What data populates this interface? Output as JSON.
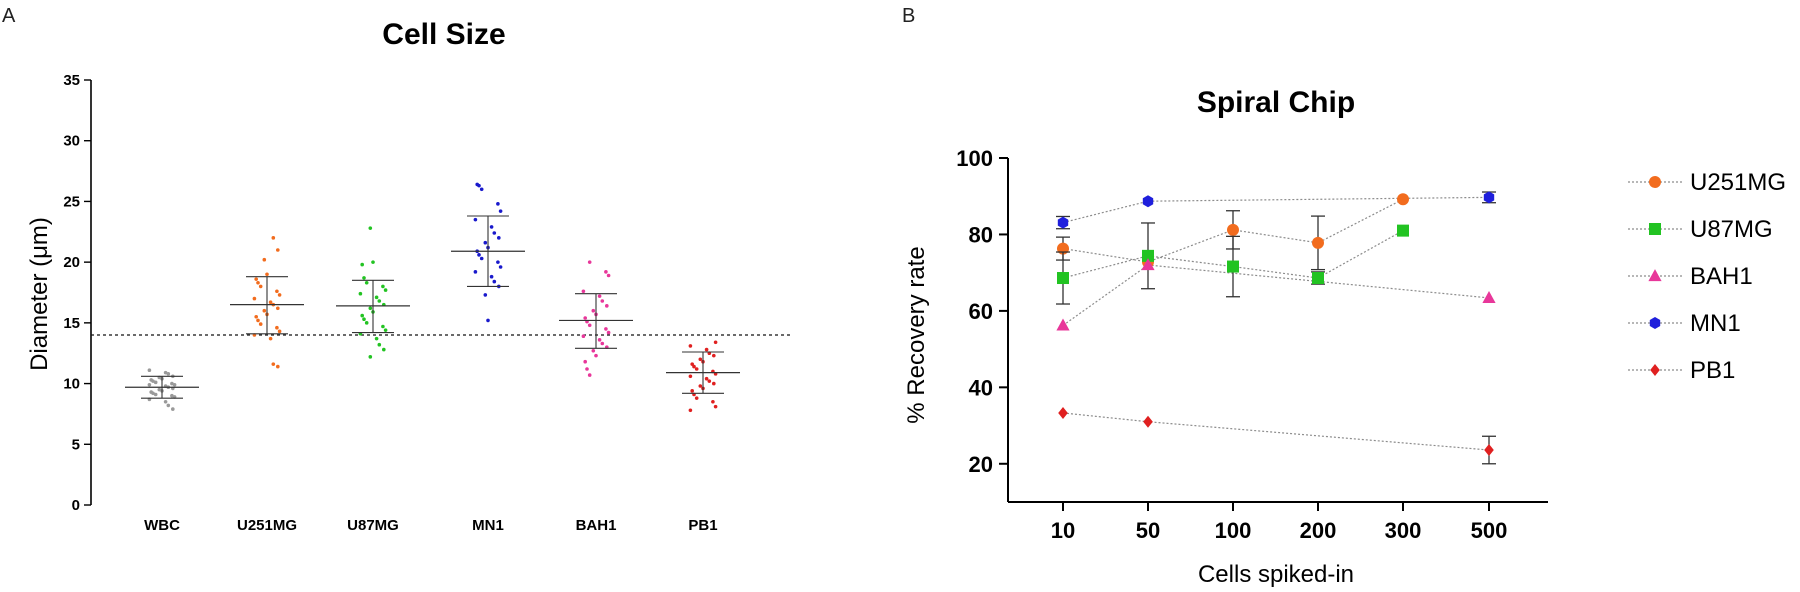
{
  "panels": [
    {
      "letter": "A"
    },
    {
      "letter": "B"
    }
  ],
  "chart_data": [
    {
      "type": "scatter",
      "title": "Cell Size",
      "xlabel": "",
      "ylabel": "Diameter (μm)",
      "ylim": [
        0,
        35
      ],
      "yticks": [
        0,
        5,
        10,
        15,
        20,
        25,
        30,
        35
      ],
      "threshold": 14,
      "categories": [
        "WBC",
        "U251MG",
        "U87MG",
        "MN1",
        "BAH1",
        "PB1"
      ],
      "series": [
        {
          "name": "WBC",
          "color": "#9a9a9a",
          "mean": 9.7,
          "sd_low": 8.8,
          "sd_high": 10.6,
          "points": [
            11.1,
            10.9,
            10.8,
            10.6,
            10.5,
            10.4,
            10.3,
            10.2,
            10.1,
            10.0,
            9.9,
            9.9,
            9.8,
            9.7,
            9.6,
            9.5,
            9.4,
            9.3,
            9.2,
            9.1,
            9.0,
            8.9,
            8.7,
            8.5,
            8.2,
            7.9
          ]
        },
        {
          "name": "U251MG",
          "color": "#f26c1e",
          "mean": 16.5,
          "sd_low": 14.1,
          "sd_high": 18.8,
          "points": [
            22.0,
            21.0,
            20.2,
            19.0,
            18.6,
            18.3,
            18.0,
            17.6,
            17.3,
            17.0,
            16.7,
            16.5,
            16.2,
            16.0,
            15.7,
            15.5,
            15.2,
            14.9,
            14.6,
            14.3,
            14.0,
            13.7,
            11.6,
            11.4
          ]
        },
        {
          "name": "U87MG",
          "color": "#22c322",
          "mean": 16.4,
          "sd_low": 14.2,
          "sd_high": 18.5,
          "points": [
            22.8,
            20.0,
            19.8,
            18.7,
            18.3,
            18.0,
            17.7,
            17.4,
            17.1,
            16.8,
            16.5,
            16.2,
            15.9,
            15.6,
            15.3,
            15.0,
            14.7,
            14.4,
            14.1,
            13.7,
            13.2,
            12.8,
            12.2
          ]
        },
        {
          "name": "MN1",
          "color": "#1919cc",
          "mean": 20.9,
          "sd_low": 18.0,
          "sd_high": 23.8,
          "points": [
            26.4,
            26.3,
            26.0,
            24.8,
            24.2,
            23.5,
            22.9,
            22.4,
            22.0,
            21.6,
            21.2,
            20.9,
            20.6,
            20.3,
            20.0,
            19.6,
            19.2,
            18.8,
            18.4,
            18.0,
            17.3,
            15.2
          ]
        },
        {
          "name": "BAH1",
          "color": "#e8379a",
          "mean": 15.2,
          "sd_low": 12.9,
          "sd_high": 17.4,
          "points": [
            20.0,
            19.2,
            18.9,
            17.6,
            17.2,
            16.8,
            16.4,
            16.0,
            15.7,
            15.4,
            15.1,
            14.8,
            14.5,
            14.2,
            13.9,
            13.6,
            13.3,
            13.0,
            12.7,
            12.3,
            11.8,
            11.2,
            10.7
          ]
        },
        {
          "name": "PB1",
          "color": "#e02020",
          "mean": 10.9,
          "sd_low": 9.2,
          "sd_high": 12.6,
          "points": [
            13.4,
            13.1,
            12.8,
            12.5,
            12.3,
            12.0,
            11.8,
            11.6,
            11.4,
            11.2,
            11.0,
            10.8,
            10.6,
            10.4,
            10.2,
            10.0,
            9.8,
            9.6,
            9.4,
            9.1,
            8.8,
            8.5,
            8.1,
            7.8
          ]
        }
      ]
    },
    {
      "type": "line",
      "title": "Spiral Chip",
      "xlabel": "Cells spiked-in",
      "ylabel": "% Recovery rate",
      "categories": [
        "10",
        "50",
        "100",
        "200",
        "300",
        "500"
      ],
      "ylim": [
        10,
        100
      ],
      "yticks": [
        20,
        40,
        60,
        80,
        100
      ],
      "legend_position": "right",
      "series": [
        {
          "name": "U251MG",
          "color": "#f26c1e",
          "marker": "circle",
          "x": [
            "10",
            "50",
            "100",
            "200",
            "300"
          ],
          "values": [
            76.3,
            72.8,
            81.2,
            77.8,
            89.2
          ],
          "err": [
            3.0,
            0,
            5.0,
            7.0,
            0
          ]
        },
        {
          "name": "U87MG",
          "color": "#22c322",
          "marker": "square",
          "x": [
            "10",
            "50",
            "100",
            "200",
            "300"
          ],
          "values": [
            68.6,
            74.4,
            71.6,
            68.6,
            81.0
          ],
          "err": [
            6.8,
            8.6,
            7.9,
            1.6,
            0
          ]
        },
        {
          "name": "BAH1",
          "color": "#e8379a",
          "marker": "triangle",
          "x": [
            "10",
            "50",
            "500"
          ],
          "values": [
            56.2,
            72.0,
            63.4
          ],
          "err": [
            0,
            0,
            0
          ]
        },
        {
          "name": "MN1",
          "color": "#1f1fdc",
          "marker": "hexagon",
          "x": [
            "10",
            "50",
            "500"
          ],
          "values": [
            83.1,
            88.7,
            89.7
          ],
          "err": [
            1.6,
            0,
            1.4
          ]
        },
        {
          "name": "PB1",
          "color": "#e02020",
          "marker": "diamond",
          "x": [
            "10",
            "50",
            "500"
          ],
          "values": [
            33.3,
            31.0,
            23.6
          ],
          "err": [
            0,
            0,
            3.6
          ]
        }
      ]
    }
  ]
}
